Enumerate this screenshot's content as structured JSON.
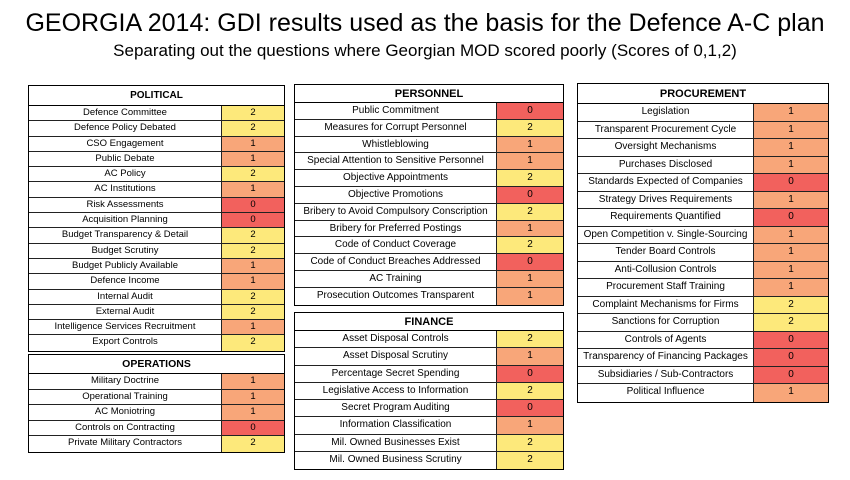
{
  "title": "GEORGIA 2014: GDI results used as the basis for the Defence A-C plan",
  "subtitle": "Separating out the questions where Georgian MOD scored poorly (Scores of 0,1,2)",
  "colors": {
    "score_0": "#f2615d",
    "score_1": "#f8a679",
    "score_2": "#fde97b"
  },
  "political": {
    "header": "POLITICAL",
    "rows": [
      {
        "label": "Defence Committee",
        "score": "2"
      },
      {
        "label": "Defence Policy Debated",
        "score": "2"
      },
      {
        "label": "CSO Engagement",
        "score": "1"
      },
      {
        "label": "Public Debate",
        "score": "1"
      },
      {
        "label": "AC Policy",
        "score": "2"
      },
      {
        "label": "AC Institutions",
        "score": "1"
      },
      {
        "label": "Risk Assessments",
        "score": "0"
      },
      {
        "label": "Acquisition Planning",
        "score": "0"
      },
      {
        "label": "Budget Transparency & Detail",
        "score": "2"
      },
      {
        "label": "Budget Scrutiny",
        "score": "2"
      },
      {
        "label": "Budget Publicly Available",
        "score": "1"
      },
      {
        "label": "Defence Income",
        "score": "1"
      },
      {
        "label": "Internal Audit",
        "score": "2"
      },
      {
        "label": "External Audit",
        "score": "2"
      },
      {
        "label": "Intelligence Services Recruitment",
        "score": "1"
      },
      {
        "label": "Export Controls",
        "score": "2"
      }
    ]
  },
  "operations": {
    "header": "OPERATIONS",
    "rows": [
      {
        "label": "Military Doctrine",
        "score": "1"
      },
      {
        "label": "Operational Training",
        "score": "1"
      },
      {
        "label": "AC Moniotring",
        "score": "1"
      },
      {
        "label": "Controls on Contracting",
        "score": "0"
      },
      {
        "label": "Private Military Contractors",
        "score": "2"
      }
    ]
  },
  "personnel": {
    "header": "PERSONNEL",
    "rows": [
      {
        "label": "Public Commitment",
        "score": "0"
      },
      {
        "label": "Measures for Corrupt Personnel",
        "score": "2"
      },
      {
        "label": "Whistleblowing",
        "score": "1"
      },
      {
        "label": "Special Attention to Sensitive Personnel",
        "score": "1"
      },
      {
        "label": "Objective Appointments",
        "score": "2"
      },
      {
        "label": "Objective Promotions",
        "score": "0"
      },
      {
        "label": "Bribery to Avoid Compulsory Conscription",
        "score": "2"
      },
      {
        "label": "Bribery for Preferred Postings",
        "score": "1"
      },
      {
        "label": "Code of Conduct Coverage",
        "score": "2"
      },
      {
        "label": "Code of Conduct Breaches Addressed",
        "score": "0"
      },
      {
        "label": "AC Training",
        "score": "1"
      },
      {
        "label": "Prosecution Outcomes Transparent",
        "score": "1"
      }
    ]
  },
  "finance": {
    "header": "FINANCE",
    "rows": [
      {
        "label": "Asset Disposal Controls",
        "score": "2"
      },
      {
        "label": "Asset Disposal Scrutiny",
        "score": "1"
      },
      {
        "label": "Percentage Secret Spending",
        "score": "0"
      },
      {
        "label": "Legislative Access to Information",
        "score": "2"
      },
      {
        "label": "Secret Program Auditing",
        "score": "0"
      },
      {
        "label": "Information Classification",
        "score": "1"
      },
      {
        "label": "Mil. Owned Businesses Exist",
        "score": "2"
      },
      {
        "label": "Mil. Owned Business Scrutiny",
        "score": "2"
      }
    ]
  },
  "procurement": {
    "header": "PROCUREMENT",
    "rows": [
      {
        "label": "Legislation",
        "score": "1"
      },
      {
        "label": "Transparent Procurement Cycle",
        "score": "1"
      },
      {
        "label": "Oversight Mechanisms",
        "score": "1"
      },
      {
        "label": "Purchases Disclosed",
        "score": "1"
      },
      {
        "label": "Standards Expected of Companies",
        "score": "0"
      },
      {
        "label": "Strategy Drives Requirements",
        "score": "1"
      },
      {
        "label": "Requirements Quantified",
        "score": "0"
      },
      {
        "label": "Open Competition v. Single-Sourcing",
        "score": "1"
      },
      {
        "label": "Tender Board Controls",
        "score": "1"
      },
      {
        "label": "Anti-Collusion Controls",
        "score": "1"
      },
      {
        "label": "Procurement Staff Training",
        "score": "1"
      },
      {
        "label": "Complaint Mechanisms for Firms",
        "score": "2"
      },
      {
        "label": "Sanctions for Corruption",
        "score": "2"
      },
      {
        "label": "Controls of Agents",
        "score": "0"
      },
      {
        "label": "Transparency of Financing Packages",
        "score": "0"
      },
      {
        "label": "Subsidiaries / Sub-Contractors",
        "score": "0"
      },
      {
        "label": "Political Influence",
        "score": "1"
      }
    ]
  }
}
